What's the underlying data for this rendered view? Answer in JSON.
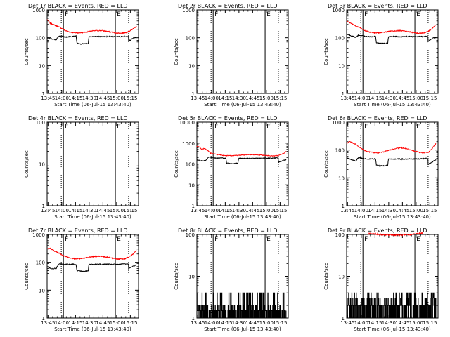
{
  "window": {
    "x_title_prefix": "Start Time (",
    "x_title_time": "06-Jul-15 13:43:40",
    "x_title_suffix": ")"
  },
  "colors": {
    "events": "#000000",
    "lld": "#ff0000",
    "axes": "#000000",
    "background": "#ffffff"
  },
  "markers": {
    "first": "F",
    "second": "E"
  },
  "chart_data": [
    {
      "type": "line",
      "title": "Det 1r BLACK = Events, RED = LLD",
      "ylabel": "Counts/sec",
      "xlabel": "Start Time (06-Jul-15 13:43:40)",
      "x_ticks": [
        "13:45",
        "14:00",
        "14:15",
        "14:30",
        "14:45",
        "15:00",
        "15:15"
      ],
      "x_tick_values": [
        61,
        963,
        1863,
        2763,
        3663,
        4563,
        5463
      ],
      "xlim": [
        0,
        6000
      ],
      "y_scale": "log",
      "ylim": [
        1,
        1000
      ],
      "y_ticks": [
        "1",
        "10",
        "100",
        "1000"
      ],
      "solid_lines_x": [
        1070,
        4480
      ],
      "dotted_lines_x": [
        930,
        5350
      ],
      "series": [
        {
          "key": "black",
          "x": [
            0,
            100,
            300,
            600,
            800,
            1000,
            1200,
            1500,
            1650,
            1900,
            1950,
            2200,
            2500,
            2700,
            2750,
            3000,
            3300,
            3600,
            4000,
            4400,
            4800,
            5200,
            5340,
            5350,
            5500,
            5700,
            5870
          ],
          "y": [
            100,
            95,
            90,
            85,
            115,
            115,
            105,
            110,
            110,
            115,
            65,
            60,
            62,
            62,
            110,
            110,
            110,
            108,
            110,
            110,
            110,
            112,
            110,
            75,
            85,
            100,
            100
          ]
        },
        {
          "key": "red",
          "x": [
            0,
            200,
            500,
            800,
            1000,
            1200,
            1500,
            1800,
            2100,
            2400,
            2700,
            3000,
            3300,
            3600,
            3900,
            4200,
            4500,
            4800,
            5100,
            5400,
            5600,
            5870
          ],
          "y": [
            450,
            330,
            280,
            240,
            210,
            180,
            160,
            150,
            150,
            155,
            165,
            175,
            180,
            180,
            170,
            160,
            150,
            145,
            150,
            170,
            200,
            260
          ]
        }
      ]
    },
    {
      "type": "line",
      "title": "Det 2r BLACK = Events, RED = LLD",
      "ylabel": "Counts/sec",
      "xlabel": "Start Time (06-Jul-15 13:43:40)",
      "x_ticks": [
        "13:45",
        "14:00",
        "14:15",
        "14:30",
        "14:45",
        "15:00",
        "15:15"
      ],
      "x_tick_values": [
        61,
        963,
        1863,
        2763,
        3663,
        4563,
        5463
      ],
      "xlim": [
        0,
        6000
      ],
      "y_scale": "log",
      "ylim": [
        1,
        1000
      ],
      "y_ticks": [
        "1",
        "10",
        "100",
        "1000"
      ],
      "solid_lines_x": [
        1070,
        4480
      ],
      "dotted_lines_x": [
        930,
        5350
      ],
      "series": [
        {
          "key": "black",
          "x": [],
          "y": []
        },
        {
          "key": "red",
          "x": [],
          "y": []
        }
      ]
    },
    {
      "type": "line",
      "title": "Det 3r BLACK = Events, RED = LLD",
      "ylabel": "Counts/sec",
      "xlabel": "Start Time (06-Jul-15 13:43:40)",
      "x_ticks": [
        "13:45",
        "14:00",
        "14:15",
        "14:30",
        "14:45",
        "15:00",
        "15:15"
      ],
      "x_tick_values": [
        61,
        963,
        1863,
        2763,
        3663,
        4563,
        5463
      ],
      "xlim": [
        0,
        6000
      ],
      "y_scale": "log",
      "ylim": [
        1,
        1000
      ],
      "y_ticks": [
        "1",
        "10",
        "100",
        "1000"
      ],
      "solid_lines_x": [
        1070,
        4480
      ],
      "dotted_lines_x": [
        930,
        5350
      ],
      "series": [
        {
          "key": "black",
          "x": [
            0,
            100,
            300,
            600,
            800,
            1000,
            1200,
            1500,
            1650,
            1900,
            1950,
            2200,
            2500,
            2700,
            2750,
            3000,
            3300,
            3600,
            4000,
            4400,
            4800,
            5200,
            5340,
            5350,
            5500,
            5700,
            5870
          ],
          "y": [
            140,
            130,
            115,
            105,
            125,
            120,
            110,
            110,
            110,
            112,
            65,
            62,
            62,
            64,
            110,
            110,
            110,
            108,
            110,
            110,
            110,
            112,
            110,
            75,
            85,
            100,
            105
          ]
        },
        {
          "key": "red",
          "x": [
            0,
            200,
            500,
            800,
            1000,
            1200,
            1500,
            1800,
            2100,
            2400,
            2700,
            3000,
            3300,
            3600,
            3900,
            4200,
            4500,
            4800,
            5100,
            5400,
            5600,
            5870
          ],
          "y": [
            400,
            340,
            280,
            240,
            210,
            180,
            160,
            150,
            150,
            155,
            165,
            175,
            180,
            180,
            170,
            160,
            150,
            145,
            150,
            175,
            210,
            290
          ]
        }
      ]
    },
    {
      "type": "line",
      "title": "Det 4r BLACK = Events, RED = LLD",
      "ylabel": "Counts/sec",
      "xlabel": "Start Time (06-Jul-15 13:43:40)",
      "x_ticks": [
        "13:45",
        "14:00",
        "14:15",
        "14:30",
        "14:45",
        "15:00",
        "15:15"
      ],
      "x_tick_values": [
        61,
        963,
        1863,
        2763,
        3663,
        4563,
        5463
      ],
      "xlim": [
        0,
        6000
      ],
      "y_scale": "log",
      "ylim": [
        1,
        100
      ],
      "y_ticks": [
        "1",
        "10",
        "100"
      ],
      "solid_lines_x": [
        1070,
        4480
      ],
      "dotted_lines_x": [
        930,
        5350
      ],
      "series": [
        {
          "key": "black",
          "x": [],
          "y": []
        },
        {
          "key": "red",
          "x": [],
          "y": []
        }
      ]
    },
    {
      "type": "line",
      "title": "Det 5r BLACK = Events, RED = LLD",
      "ylabel": "Counts/sec",
      "xlabel": "Start Time (06-Jul-15 13:43:40)",
      "x_ticks": [
        "13:45",
        "14:00",
        "14:15",
        "14:30",
        "14:45",
        "15:00",
        "15:15"
      ],
      "x_tick_values": [
        61,
        963,
        1863,
        2763,
        3663,
        4563,
        5463
      ],
      "xlim": [
        0,
        6000
      ],
      "y_scale": "log",
      "ylim": [
        1,
        10000
      ],
      "y_ticks": [
        "1",
        "10",
        "100",
        "1000",
        "10000"
      ],
      "solid_lines_x": [
        1070,
        4480
      ],
      "dotted_lines_x": [
        930,
        5350
      ],
      "series": [
        {
          "key": "black",
          "x": [
            0,
            100,
            300,
            600,
            800,
            1000,
            1200,
            1500,
            1800,
            1900,
            1950,
            2200,
            2500,
            2700,
            2750,
            3000,
            3300,
            3600,
            4000,
            4400,
            4800,
            5200,
            5340,
            5350,
            5500,
            5700,
            5870
          ],
          "y": [
            160,
            150,
            140,
            150,
            220,
            200,
            190,
            190,
            190,
            190,
            110,
            105,
            105,
            110,
            185,
            185,
            185,
            185,
            190,
            190,
            190,
            195,
            190,
            120,
            130,
            150,
            160
          ]
        },
        {
          "key": "red",
          "x": [
            0,
            150,
            300,
            500,
            700,
            900,
            1100,
            1400,
            1700,
            2000,
            2300,
            2600,
            2900,
            3200,
            3500,
            3800,
            4100,
            4400,
            4700,
            5000,
            5300,
            5500,
            5700,
            5870
          ],
          "y": [
            700,
            650,
            500,
            550,
            450,
            330,
            300,
            280,
            260,
            250,
            250,
            255,
            265,
            275,
            280,
            280,
            270,
            260,
            250,
            245,
            250,
            280,
            320,
            400
          ]
        }
      ]
    },
    {
      "type": "line",
      "title": "Det 6r BLACK = Events, RED = LLD",
      "ylabel": "Counts/sec",
      "xlabel": "Start Time (06-Jul-15 13:43:40)",
      "x_ticks": [
        "13:45",
        "14:00",
        "14:15",
        "14:30",
        "14:45",
        "15:00",
        "15:15"
      ],
      "x_tick_values": [
        61,
        963,
        1863,
        2763,
        3663,
        4563,
        5463
      ],
      "xlim": [
        0,
        6000
      ],
      "y_scale": "log",
      "ylim": [
        1,
        1000
      ],
      "y_ticks": [
        "1",
        "10",
        "100",
        "1000"
      ],
      "solid_lines_x": [
        1070,
        4480
      ],
      "dotted_lines_x": [
        930,
        5350
      ],
      "series": [
        {
          "key": "black",
          "x": [
            0,
            100,
            300,
            600,
            800,
            1000,
            1200,
            1500,
            1800,
            1900,
            1950,
            2200,
            2500,
            2700,
            2750,
            3000,
            3300,
            3600,
            4000,
            4400,
            4800,
            5200,
            5340,
            5350,
            5500,
            5700,
            5870
          ],
          "y": [
            55,
            50,
            45,
            40,
            55,
            50,
            48,
            48,
            48,
            48,
            28,
            27,
            27,
            28,
            48,
            48,
            48,
            47,
            48,
            48,
            48,
            50,
            48,
            30,
            34,
            40,
            45
          ]
        },
        {
          "key": "red",
          "x": [
            0,
            200,
            400,
            600,
            800,
            1000,
            1200,
            1500,
            1800,
            2100,
            2400,
            2700,
            3000,
            3300,
            3600,
            3900,
            4200,
            4500,
            4800,
            5100,
            5400,
            5600,
            5870
          ],
          "y": [
            170,
            200,
            180,
            160,
            130,
            110,
            95,
            85,
            80,
            80,
            85,
            95,
            105,
            115,
            120,
            115,
            100,
            90,
            82,
            80,
            85,
            110,
            170
          ]
        }
      ]
    },
    {
      "type": "line",
      "title": "Det 7r BLACK = Events, RED = LLD",
      "ylabel": "Counts/sec",
      "xlabel": "Start Time (06-Jul-15 13:43:40)",
      "x_ticks": [
        "13:45",
        "14:00",
        "14:15",
        "14:30",
        "14:45",
        "15:00",
        "15:15"
      ],
      "x_tick_values": [
        61,
        963,
        1863,
        2763,
        3663,
        4563,
        5463
      ],
      "xlim": [
        0,
        6000
      ],
      "y_scale": "log",
      "ylim": [
        1,
        1000
      ],
      "y_ticks": [
        "1",
        "10",
        "100",
        "1000"
      ],
      "solid_lines_x": [
        1070,
        4480
      ],
      "dotted_lines_x": [
        930,
        5350
      ],
      "series": [
        {
          "key": "black",
          "x": [
            0,
            100,
            300,
            600,
            800,
            1000,
            1200,
            1500,
            1800,
            1900,
            1950,
            2200,
            2500,
            2700,
            2750,
            3000,
            3300,
            3600,
            4000,
            4400,
            4800,
            5200,
            5340,
            5350,
            5500,
            5700,
            5870
          ],
          "y": [
            70,
            65,
            60,
            60,
            90,
            85,
            85,
            85,
            85,
            85,
            50,
            48,
            48,
            50,
            85,
            85,
            85,
            85,
            85,
            85,
            85,
            88,
            85,
            60,
            65,
            75,
            80
          ]
        },
        {
          "key": "red",
          "x": [
            0,
            200,
            500,
            800,
            1000,
            1200,
            1500,
            1800,
            2100,
            2400,
            2700,
            3000,
            3300,
            3600,
            3900,
            4200,
            4500,
            4800,
            5100,
            5400,
            5600,
            5870
          ],
          "y": [
            300,
            320,
            250,
            210,
            180,
            160,
            145,
            135,
            135,
            140,
            150,
            160,
            165,
            165,
            155,
            145,
            135,
            130,
            135,
            160,
            190,
            260
          ]
        }
      ]
    },
    {
      "type": "line",
      "title": "Det 8r BLACK = Events, RED = LLD",
      "ylabel": "Counts/sec",
      "xlabel": "Start Time (06-Jul-15 13:43:40)",
      "x_ticks": [
        "13:45",
        "14:00",
        "14:15",
        "14:30",
        "14:45",
        "15:00",
        "15:15"
      ],
      "x_tick_values": [
        61,
        963,
        1863,
        2763,
        3663,
        4563,
        5463
      ],
      "xlim": [
        0,
        6000
      ],
      "y_scale": "log",
      "ylim": [
        1,
        100
      ],
      "y_ticks": [
        "1",
        "10",
        "100"
      ],
      "solid_lines_x": [
        1070,
        4480
      ],
      "dotted_lines_x": [
        930,
        5350
      ],
      "series": [
        {
          "key": "black",
          "pattern": "sparse-counts",
          "levels": [
            1,
            1.5,
            2,
            3,
            4
          ],
          "x_range": [
            0,
            5870
          ]
        },
        {
          "key": "red",
          "x": [],
          "y": []
        }
      ]
    },
    {
      "type": "line",
      "title": "Det 9r BLACK = Events, RED = LLD",
      "ylabel": "Counts/sec",
      "xlabel": "Start Time (06-Jul-15 13:43:40)",
      "x_ticks": [
        "13:45",
        "14:00",
        "14:15",
        "14:30",
        "14:45",
        "15:00",
        "15:15"
      ],
      "x_tick_values": [
        61,
        963,
        1863,
        2763,
        3663,
        4563,
        5463
      ],
      "xlim": [
        0,
        6000
      ],
      "y_scale": "log",
      "ylim": [
        1,
        100
      ],
      "y_ticks": [
        "1",
        "10",
        "100"
      ],
      "solid_lines_x": [
        1070,
        4480
      ],
      "dotted_lines_x": [
        930,
        5350
      ],
      "series": [
        {
          "key": "black",
          "pattern": "sparse-counts",
          "levels": [
            1,
            2,
            3,
            4
          ],
          "x_range": [
            0,
            5870
          ]
        },
        {
          "key": "red",
          "x": [
            1400,
            1800,
            2200,
            2600,
            3000,
            3400,
            3800,
            4200,
            4600,
            5000
          ],
          "y": [
            105,
            104,
            100,
            98,
            97,
            97,
            98,
            100,
            104,
            108
          ]
        }
      ]
    }
  ]
}
